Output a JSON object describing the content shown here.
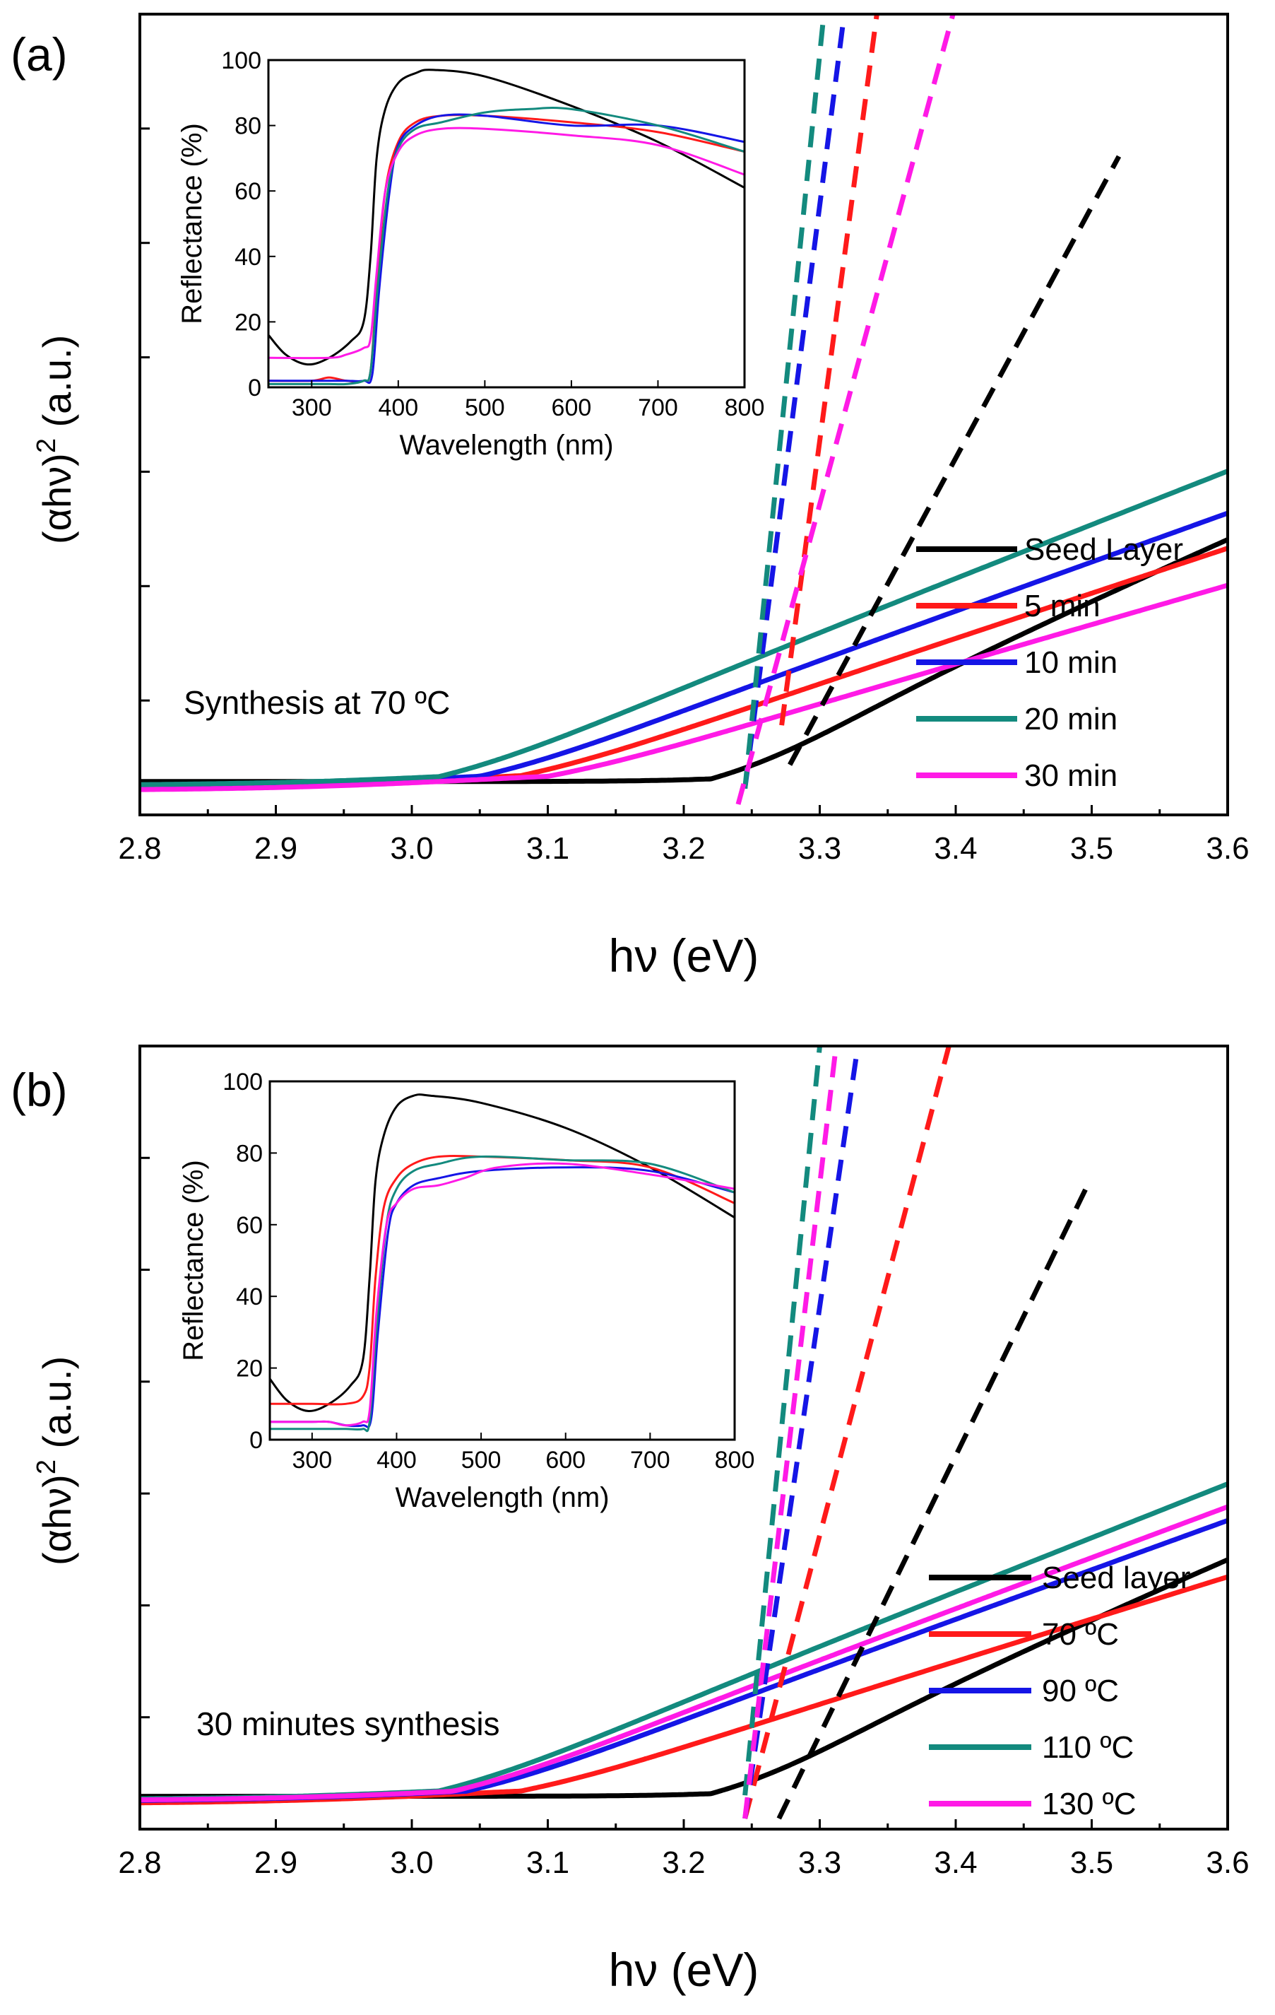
{
  "colors": {
    "black": "#000000",
    "red": "#ff1a1a",
    "blue": "#1515e6",
    "teal": "#138a7e",
    "magenta": "#ff1ae6"
  },
  "chart_data": [
    {
      "panel": "(a)",
      "type": "line",
      "xlabel": "hν (eV)",
      "ylabel": "(αhν)² (a.u.)",
      "ylabel_parts": {
        "pre": "(αhν)",
        "sup": "2",
        "post": " (a.u.)"
      },
      "xlim": [
        2.8,
        3.6
      ],
      "ylim": [
        0,
        1.0
      ],
      "xticks": [
        "2.8",
        "2.9",
        "3.0",
        "3.1",
        "3.2",
        "3.3",
        "3.4",
        "3.5",
        "3.6"
      ],
      "annotation": "Synthesis at 70 ºC",
      "legend_position": "lower-right",
      "series": [
        {
          "name": "Seed Layer",
          "color": "black",
          "onset": 3.22,
          "slope": 0.83,
          "mid": 3.305,
          "k": 23,
          "cap": 1.25,
          "fit": {
            "x": [
              3.278,
              3.52
            ],
            "y": [
              0.05,
              0.82
            ]
          }
        },
        {
          "name": "5 min",
          "color": "red",
          "onset": 3.08,
          "slope": 0.57,
          "mid": 3.05,
          "k": 12,
          "cap": 6.0,
          "fit": {
            "x": [
              3.272,
              3.342
            ],
            "y": [
              0.1,
              1.0
            ]
          }
        },
        {
          "name": "10 min",
          "color": "blue",
          "onset": 3.05,
          "slope": 0.62,
          "mid": 3.05,
          "k": 12,
          "cap": 6.0,
          "fit": {
            "x": [
              3.245,
              3.318
            ],
            "y": [
              0.02,
              1.0
            ]
          }
        },
        {
          "name": "20 min",
          "color": "teal",
          "onset": 3.02,
          "slope": 0.68,
          "mid": 3.05,
          "k": 12,
          "cap": 6.0,
          "fit": {
            "x": [
              3.245,
              3.303
            ],
            "y": [
              0.02,
              1.0
            ]
          }
        },
        {
          "name": "30 min",
          "color": "magenta",
          "onset": 3.1,
          "slope": 0.5,
          "mid": 3.05,
          "k": 12,
          "cap": 3.0,
          "fit": {
            "x": [
              3.24,
              3.398
            ],
            "y": [
              0.0,
              1.0
            ]
          }
        }
      ],
      "inset": {
        "xlabel": "Wavelength (nm)",
        "ylabel": "Reflectance (%)",
        "xlim": [
          250,
          800
        ],
        "ylim": [
          0,
          100
        ],
        "xticks": [
          "300",
          "400",
          "500",
          "600",
          "700",
          "800"
        ],
        "yticks": [
          "0",
          "20",
          "40",
          "60",
          "80",
          "100"
        ],
        "series": [
          {
            "name": "Seed Layer",
            "color": "black",
            "x": [
              250,
              270,
              295,
              320,
              345,
              360,
              368,
              375,
              385,
              400,
              420,
              440,
              500,
              600,
              700,
              800
            ],
            "y": [
              16,
              10,
              7,
              9,
              14,
              20,
              40,
              70,
              85,
              93,
              96,
              97,
              95,
              86,
              75,
              61
            ]
          },
          {
            "name": "5 min",
            "color": "red",
            "x": [
              250,
              300,
              320,
              340,
              360,
              368,
              375,
              385,
              400,
              420,
              450,
              500,
              600,
              700,
              800
            ],
            "y": [
              2,
              2,
              3,
              2,
              2,
              5,
              30,
              60,
              75,
              81,
              83,
              83,
              81,
              78,
              72
            ]
          },
          {
            "name": "10 min",
            "color": "blue",
            "x": [
              250,
              300,
              320,
              340,
              360,
              370,
              378,
              390,
              400,
              420,
              450,
              500,
              600,
              700,
              800
            ],
            "y": [
              2,
              2,
              2,
              2,
              2,
              4,
              30,
              60,
              74,
              80,
              83,
              83,
              80,
              80,
              75
            ]
          },
          {
            "name": "20 min",
            "color": "teal",
            "x": [
              250,
              300,
              320,
              340,
              360,
              368,
              376,
              388,
              400,
              420,
              450,
              500,
              550,
              600,
              700,
              800
            ],
            "y": [
              1,
              1,
              1,
              1,
              2,
              5,
              30,
              60,
              73,
              79,
              81,
              84,
              85,
              85,
              80,
              72
            ]
          },
          {
            "name": "30 min",
            "color": "magenta",
            "x": [
              250,
              320,
              340,
              360,
              368,
              375,
              385,
              400,
              420,
              450,
              500,
              600,
              700,
              800
            ],
            "y": [
              9,
              9,
              10,
              12,
              15,
              35,
              60,
              72,
              77,
              79,
              79,
              77,
              74,
              65
            ]
          }
        ]
      }
    },
    {
      "panel": "(b)",
      "type": "line",
      "xlabel": "hν (eV)",
      "ylabel": "(αhν)² (a.u.)",
      "ylabel_parts": {
        "pre": "(αhν)",
        "sup": "2",
        "post": " (a.u.)"
      },
      "xlim": [
        2.8,
        3.6
      ],
      "ylim": [
        0,
        1.0
      ],
      "xticks": [
        "2.8",
        "2.9",
        "3.0",
        "3.1",
        "3.2",
        "3.3",
        "3.4",
        "3.5",
        "3.6"
      ],
      "annotation": "30 minutes synthesis",
      "legend_position": "lower-right",
      "series": [
        {
          "name": "Seed layer",
          "color": "black",
          "onset": 3.22,
          "slope": 0.83,
          "mid": 3.305,
          "k": 23,
          "cap": 1.25,
          "fit": {
            "x": [
              3.27,
              3.497
            ],
            "y": [
              0.0,
              0.82
            ]
          }
        },
        {
          "name": "70 ºC",
          "color": "red",
          "onset": 3.08,
          "slope": 0.55,
          "mid": 3.05,
          "k": 12,
          "cap": 3.0,
          "fit": {
            "x": [
              3.245,
              3.395
            ],
            "y": [
              0.0,
              1.0
            ]
          }
        },
        {
          "name": "90 ºC",
          "color": "blue",
          "onset": 3.04,
          "slope": 0.64,
          "mid": 3.05,
          "k": 12,
          "cap": 6.0,
          "fit": {
            "x": [
              3.245,
              3.328
            ],
            "y": [
              0.0,
              1.0
            ]
          }
        },
        {
          "name": "110 ºC",
          "color": "teal",
          "onset": 3.02,
          "slope": 0.7,
          "mid": 3.05,
          "k": 12,
          "cap": 6.0,
          "fit": {
            "x": [
              3.245,
              3.3
            ],
            "y": [
              0.03,
              1.0
            ]
          }
        },
        {
          "name": "130 ºC",
          "color": "magenta",
          "onset": 3.03,
          "slope": 0.66,
          "mid": 3.05,
          "k": 12,
          "cap": 6.0,
          "fit": {
            "x": [
              3.245,
              3.312
            ],
            "y": [
              0.0,
              1.0
            ]
          }
        }
      ],
      "inset": {
        "xlabel": "Wavelength (nm)",
        "ylabel": "Reflectance (%)",
        "xlim": [
          250,
          800
        ],
        "ylim": [
          0,
          100
        ],
        "xticks": [
          "300",
          "400",
          "500",
          "600",
          "700",
          "800"
        ],
        "yticks": [
          "0",
          "20",
          "40",
          "60",
          "80",
          "100"
        ],
        "series": [
          {
            "name": "Seed layer",
            "color": "black",
            "x": [
              250,
              270,
              295,
              320,
              345,
              360,
              368,
              375,
              385,
              400,
              420,
              440,
              500,
              600,
              700,
              800
            ],
            "y": [
              17,
              11,
              8,
              10,
              15,
              22,
              45,
              72,
              85,
              93,
              96,
              96,
              94,
              87,
              76,
              62
            ]
          },
          {
            "name": "70 ºC",
            "color": "red",
            "x": [
              250,
              300,
              340,
              360,
              368,
              375,
              385,
              400,
              420,
              450,
              500,
              600,
              700,
              800
            ],
            "y": [
              10,
              10,
              10,
              12,
              20,
              45,
              65,
              73,
              77,
              79,
              79,
              78,
              76,
              66
            ]
          },
          {
            "name": "90 ºC",
            "color": "blue",
            "x": [
              250,
              300,
              320,
              340,
              360,
              370,
              378,
              390,
              400,
              420,
              450,
              500,
              600,
              700,
              800
            ],
            "y": [
              5,
              5,
              5,
              4,
              4,
              6,
              30,
              58,
              66,
              71,
              73,
              75,
              76,
              75,
              69
            ]
          },
          {
            "name": "110 ºC",
            "color": "teal",
            "x": [
              250,
              300,
              320,
              340,
              360,
              368,
              376,
              388,
              400,
              420,
              450,
              500,
              600,
              700,
              800
            ],
            "y": [
              3,
              3,
              3,
              3,
              3,
              5,
              30,
              60,
              70,
              75,
              77,
              79,
              78,
              77,
              69
            ]
          },
          {
            "name": "130 ºC",
            "color": "magenta",
            "x": [
              250,
              300,
              320,
              340,
              360,
              368,
              376,
              388,
              400,
              420,
              450,
              480,
              520,
              600,
              700,
              800
            ],
            "y": [
              5,
              5,
              5,
              4,
              5,
              8,
              35,
              60,
              66,
              70,
              71,
              73,
              76,
              77,
              74,
              70
            ]
          }
        ]
      }
    }
  ]
}
